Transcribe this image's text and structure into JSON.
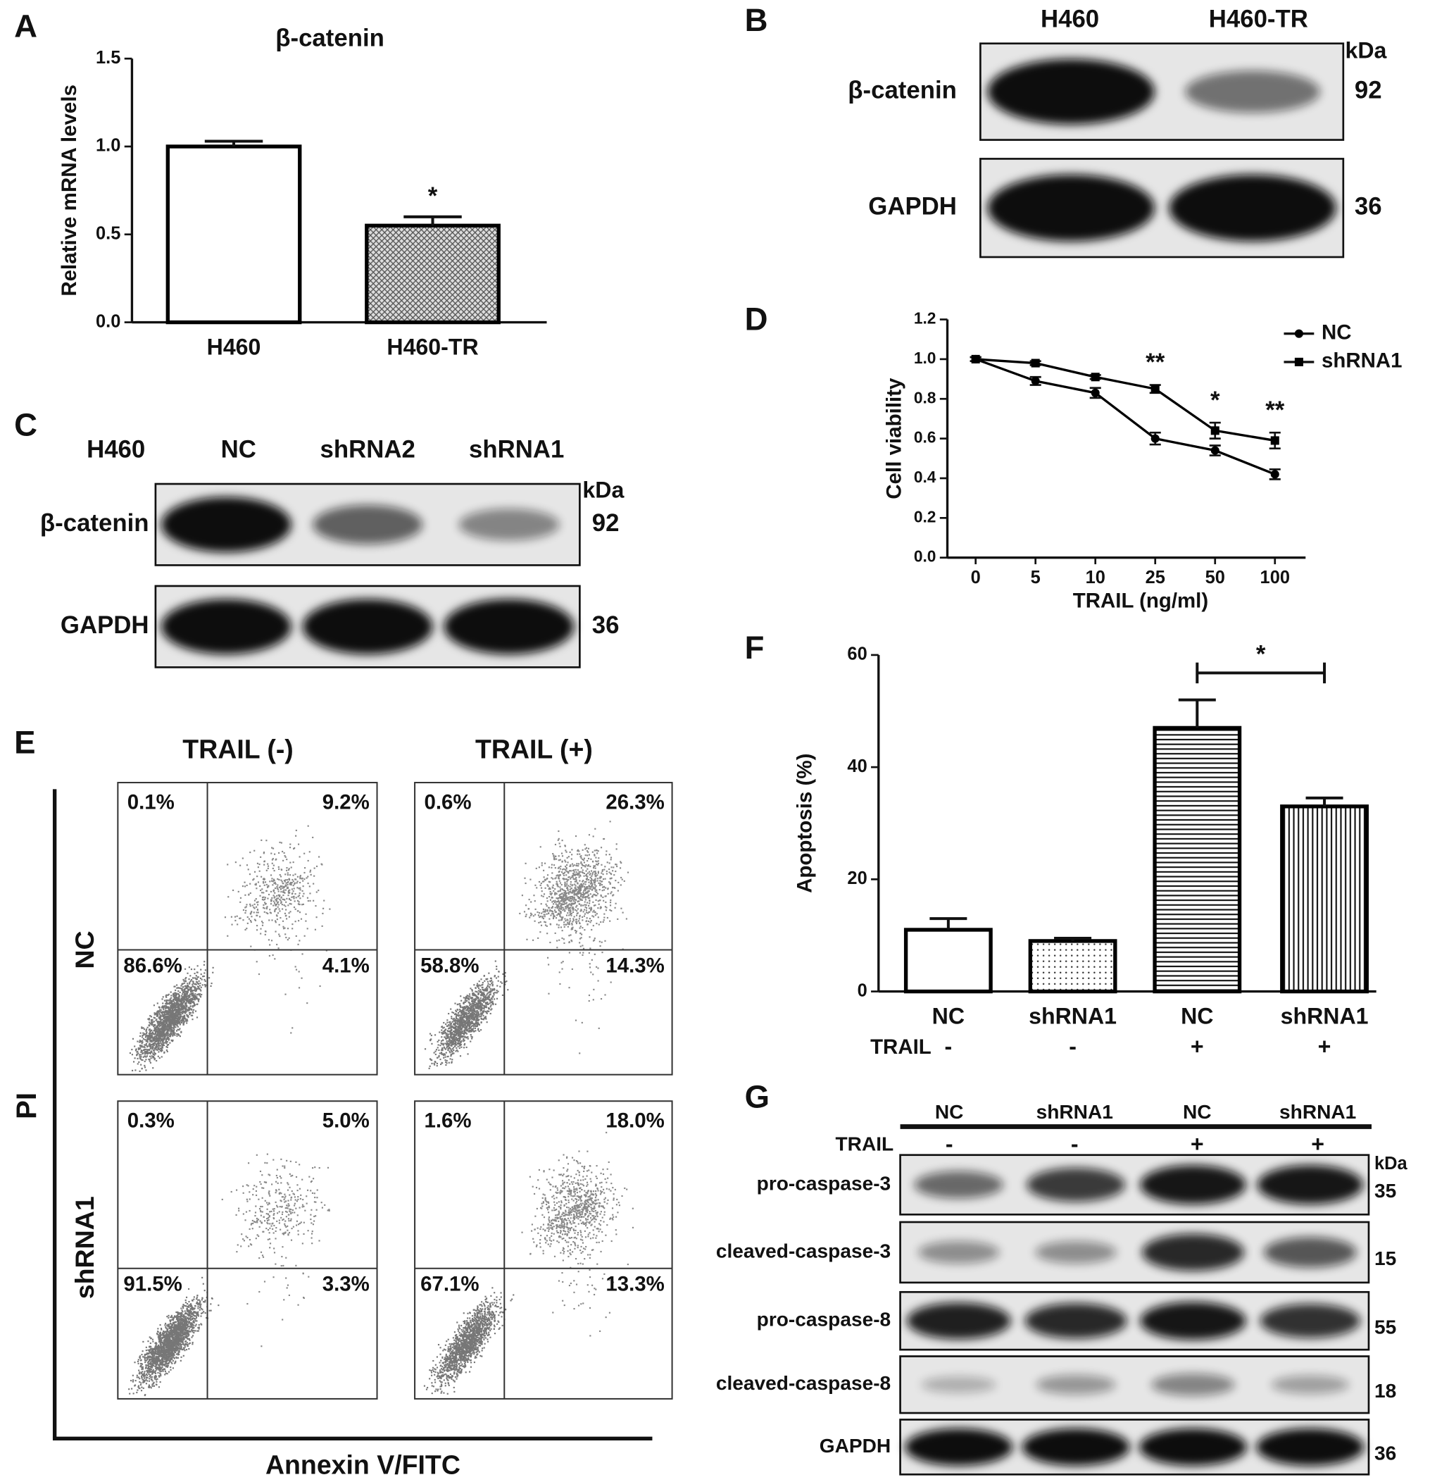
{
  "chart_data": [
    {
      "panel": "A",
      "type": "bar",
      "title": "β-catenin",
      "ylabel": "Relative mRNA levels",
      "categories": [
        "H460",
        "H460-TR"
      ],
      "values": [
        1.0,
        0.55
      ],
      "errors": [
        0.03,
        0.05
      ],
      "annotations": [
        null,
        "*"
      ],
      "fills": [
        "white",
        "crosshatch"
      ],
      "color": "#000000",
      "ylim": [
        0,
        1.5
      ],
      "yticks": [
        {
          "value": 0,
          "label": "0.0"
        },
        0.5,
        {
          "value": 1,
          "label": "1.0"
        },
        1.5
      ]
    },
    {
      "panel": "D",
      "type": "line",
      "ylabel": "Cell viability",
      "xlabel": "TRAIL (ng/ml)",
      "categories": [
        "0",
        "5",
        "10",
        "25",
        "50",
        "100"
      ],
      "series": [
        {
          "name": "NC",
          "color": "#000000",
          "marker": "circle",
          "values": [
            1.0,
            0.89,
            0.83,
            0.6,
            0.54,
            0.42
          ],
          "errors": [
            0.01,
            0.02,
            0.025,
            0.03,
            0.025,
            0.025
          ]
        },
        {
          "name": "shRNA1",
          "color": "#000000",
          "marker": "square",
          "values": [
            1.0,
            0.98,
            0.91,
            0.85,
            0.64,
            0.59
          ],
          "errors": [
            0.01,
            0.01,
            0.01,
            0.02,
            0.04,
            0.04
          ]
        }
      ],
      "annotations": [
        null,
        null,
        null,
        "**",
        "*",
        "**"
      ],
      "legend": "top-right",
      "ylim": [
        0,
        1.2
      ],
      "yticks": [
        {
          "value": 0,
          "label": "0.0"
        },
        0.2,
        0.4,
        0.6,
        0.8,
        {
          "value": 1,
          "label": "1.0"
        },
        1.2
      ]
    },
    {
      "panel": "F",
      "type": "bar",
      "ylabel": "Apoptosis (%)",
      "categories": [
        "NC",
        "shRNA1",
        "NC",
        "shRNA1"
      ],
      "values": [
        11,
        9,
        47,
        33
      ],
      "errors": [
        2,
        0.5,
        5,
        1.5
      ],
      "treatment_label": "TRAIL",
      "treatment": [
        "-",
        "-",
        "+",
        "+"
      ],
      "comparisons": [
        {
          "between": [
            2,
            3
          ],
          "text": "*"
        }
      ],
      "fills": [
        "white",
        "dots",
        "hlines",
        "vlines"
      ],
      "color": "#000000",
      "ylim": [
        0,
        60
      ],
      "yticks": [
        0,
        20,
        40,
        60
      ]
    }
  ],
  "blots": {
    "B": {
      "panel": "B",
      "lanes": [
        "H460",
        "H460-TR"
      ],
      "unit": "kDa",
      "rows": [
        {
          "label": "β-catenin",
          "kda": "92"
        },
        {
          "label": "GAPDH",
          "kda": "36"
        }
      ]
    },
    "C": {
      "panel": "C",
      "cell_line": "H460",
      "lanes": [
        "NC",
        "shRNA2",
        "shRNA1"
      ],
      "unit": "kDa",
      "rows": [
        {
          "label": "β-catenin",
          "kda": "92"
        },
        {
          "label": "GAPDH",
          "kda": "36"
        }
      ]
    },
    "G": {
      "panel": "G",
      "lanes": [
        "NC",
        "shRNA1",
        "NC",
        "shRNA1"
      ],
      "treatment_label": "TRAIL",
      "treatment": [
        "-",
        "-",
        "+",
        "+"
      ],
      "unit": "kDa",
      "rows": [
        {
          "label": "pro-caspase-3",
          "kda": "35"
        },
        {
          "label": "cleaved-caspase-3",
          "kda": "15"
        },
        {
          "label": "pro-caspase-8",
          "kda": "55"
        },
        {
          "label": "cleaved-caspase-8",
          "kda": "18"
        },
        {
          "label": "GAPDH",
          "kda": "36"
        }
      ]
    }
  },
  "flow": {
    "panel": "E",
    "columns": [
      "TRAIL (-)",
      "TRAIL (+)"
    ],
    "rows": [
      "NC",
      "shRNA1"
    ],
    "xlabel": "Annexin V/FITC",
    "ylabel": "PI",
    "quadrants": [
      [
        [
          "0.1%",
          "9.2%",
          "86.6%",
          "4.1%"
        ],
        [
          "0.6%",
          "26.3%",
          "58.8%",
          "14.3%"
        ]
      ],
      [
        [
          "0.3%",
          "5.0%",
          "91.5%",
          "3.3%"
        ],
        [
          "1.6%",
          "18.0%",
          "67.1%",
          "13.3%"
        ]
      ]
    ]
  }
}
